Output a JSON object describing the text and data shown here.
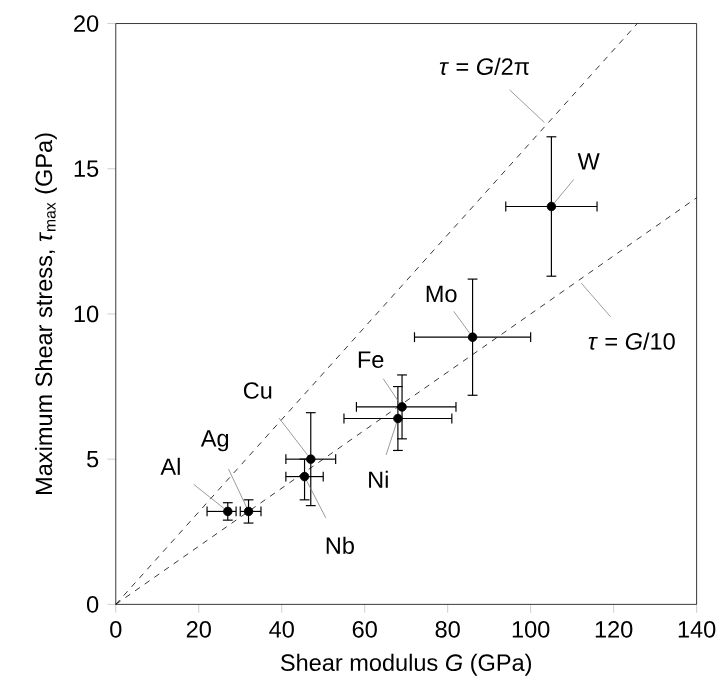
{
  "chart_data": {
    "type": "scatter",
    "xlabel": "Shear modulus *G* (GPa)",
    "ylabel": "Maximum Shear stress, *τ*$_{max}$ (GPa)",
    "xlim": [
      0,
      140
    ],
    "ylim": [
      0,
      20
    ],
    "xticks": [
      0,
      20,
      40,
      60,
      80,
      100,
      120,
      140
    ],
    "yticks": [
      0,
      5,
      10,
      15,
      20
    ],
    "grid": false,
    "marker": "circle",
    "series": [
      {
        "color": "#000000",
        "x": [
          27,
          32,
          45.5,
          47,
          68,
          69,
          86,
          105
        ],
        "values": [
          3.2,
          3.2,
          4.4,
          5.0,
          6.4,
          6.8,
          9.2,
          13.7
        ],
        "xerrors": [
          [
            22,
            29
          ],
          [
            30,
            35
          ],
          [
            41,
            50
          ],
          [
            41,
            53
          ],
          [
            55,
            81
          ],
          [
            58,
            82
          ],
          [
            72,
            100
          ],
          [
            94,
            116
          ]
        ],
        "errors": [
          [
            2.9,
            3.5
          ],
          [
            2.8,
            3.6
          ],
          [
            3.6,
            5.0
          ],
          [
            3.4,
            6.6
          ],
          [
            5.3,
            7.5
          ],
          [
            5.7,
            7.9
          ],
          [
            7.2,
            11.2
          ],
          [
            11.3,
            16.1
          ]
        ]
      },
      {
        "type": "line",
        "color": "#000000",
        "line_style": "dashed",
        "marker": "none",
        "x": [
          0,
          125.7
        ],
        "values": [
          0,
          20
        ]
      },
      {
        "type": "line",
        "color": "#000000",
        "line_style": "dashed",
        "marker": "none",
        "x": [
          0,
          140
        ],
        "values": [
          0,
          14
        ]
      }
    ],
    "annotations": [
      {
        "text": "Al",
        "x": 27,
        "y": 3.2
      },
      {
        "text": "Ag",
        "x": 32,
        "y": 3.2
      },
      {
        "text": "Nb",
        "x": 45.5,
        "y": 4.4
      },
      {
        "text": "Cu",
        "x": 47,
        "y": 5.0
      },
      {
        "text": "Ni",
        "x": 68,
        "y": 6.4
      },
      {
        "text": "Fe",
        "x": 69,
        "y": 6.8
      },
      {
        "text": "Mo",
        "x": 86,
        "y": 9.2
      },
      {
        "text": "W",
        "x": 105,
        "y": 13.7
      },
      {
        "text": "*τ* = *G*/2π",
        "x": 104,
        "y": 16.5
      },
      {
        "text": "*τ* = *G*/10",
        "x": 111.6,
        "y": 11.16
      }
    ]
  }
}
